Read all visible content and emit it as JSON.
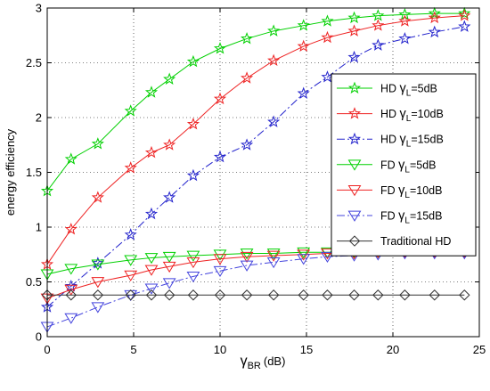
{
  "chart_data": {
    "type": "line",
    "xlabel": {
      "symbol": "γ",
      "subscript": "BR",
      "unit": "(dB)"
    },
    "ylabel": "energy efficiency",
    "xlim": [
      0,
      25
    ],
    "ylim": [
      0,
      3
    ],
    "xticks": [
      "0",
      "5",
      "10",
      "15",
      "20",
      "25"
    ],
    "yticks": [
      "0",
      "0.5",
      "1",
      "1.5",
      "2",
      "2.5",
      "3"
    ],
    "legend_position": "right",
    "x": [
      0,
      1.38,
      2.93,
      4.83,
      6.03,
      7.07,
      8.45,
      10.0,
      11.55,
      13.1,
      14.83,
      16.21,
      17.76,
      19.14,
      20.69,
      22.41,
      24.14
    ],
    "series": [
      {
        "name": "HD γL=5dB",
        "label_parts": [
          "HD ",
          "γ",
          "L",
          "=5dB"
        ],
        "color": "#00d000",
        "marker": "star",
        "dash": "solid",
        "values": [
          1.33,
          1.62,
          1.76,
          2.06,
          2.23,
          2.35,
          2.51,
          2.63,
          2.72,
          2.79,
          2.84,
          2.88,
          2.91,
          2.93,
          2.94,
          2.95,
          2.95
        ]
      },
      {
        "name": "HD γL=10dB",
        "label_parts": [
          "HD ",
          "γ",
          "L",
          "=10dB"
        ],
        "color": "#ee2222",
        "marker": "star",
        "dash": "solid",
        "values": [
          0.66,
          0.98,
          1.27,
          1.54,
          1.68,
          1.75,
          1.94,
          2.17,
          2.36,
          2.52,
          2.65,
          2.73,
          2.79,
          2.84,
          2.88,
          2.91,
          2.93
        ]
      },
      {
        "name": "HD γL=15dB",
        "label_parts": [
          "HD ",
          "γ",
          "L",
          "=15dB"
        ],
        "color": "#2222cc",
        "marker": "star",
        "dash": "dashdot",
        "values": [
          0.27,
          0.46,
          0.67,
          0.93,
          1.12,
          1.27,
          1.47,
          1.64,
          1.75,
          1.96,
          2.22,
          2.37,
          2.55,
          2.66,
          2.72,
          2.78,
          2.83
        ]
      },
      {
        "name": "FD γL=5dB",
        "label_parts": [
          "FD ",
          "γ",
          "L",
          "=5dB"
        ],
        "color": "#00d000",
        "marker": "tri",
        "dash": "solid",
        "values": [
          0.57,
          0.62,
          0.66,
          0.7,
          0.72,
          0.73,
          0.74,
          0.75,
          0.76,
          0.76,
          0.77,
          0.77,
          0.77,
          0.77,
          0.78,
          0.78,
          0.78
        ]
      },
      {
        "name": "FD γL=10dB",
        "label_parts": [
          "FD ",
          "γ",
          "L",
          "=10dB"
        ],
        "color": "#ee2222",
        "marker": "tri",
        "dash": "solid",
        "values": [
          0.35,
          0.43,
          0.5,
          0.56,
          0.61,
          0.64,
          0.68,
          0.71,
          0.73,
          0.74,
          0.75,
          0.76,
          0.76,
          0.77,
          0.77,
          0.77,
          0.77
        ]
      },
      {
        "name": "FD γL=15dB",
        "label_parts": [
          "FD ",
          "γ",
          "L",
          "=15dB"
        ],
        "color": "#4444dd",
        "marker": "tri",
        "dash": "dashdot",
        "values": [
          0.09,
          0.17,
          0.27,
          0.38,
          0.44,
          0.49,
          0.55,
          0.6,
          0.65,
          0.68,
          0.71,
          0.73,
          0.74,
          0.75,
          0.76,
          0.76,
          0.76
        ]
      },
      {
        "name": "Traditional HD",
        "label_parts": [
          "Traditional HD",
          "",
          "",
          ""
        ],
        "color": "#333333",
        "marker": "diamond",
        "dash": "solid",
        "values": [
          0.38,
          0.38,
          0.38,
          0.38,
          0.38,
          0.38,
          0.38,
          0.38,
          0.38,
          0.38,
          0.38,
          0.38,
          0.38,
          0.38,
          0.38,
          0.38,
          0.38
        ]
      }
    ]
  }
}
